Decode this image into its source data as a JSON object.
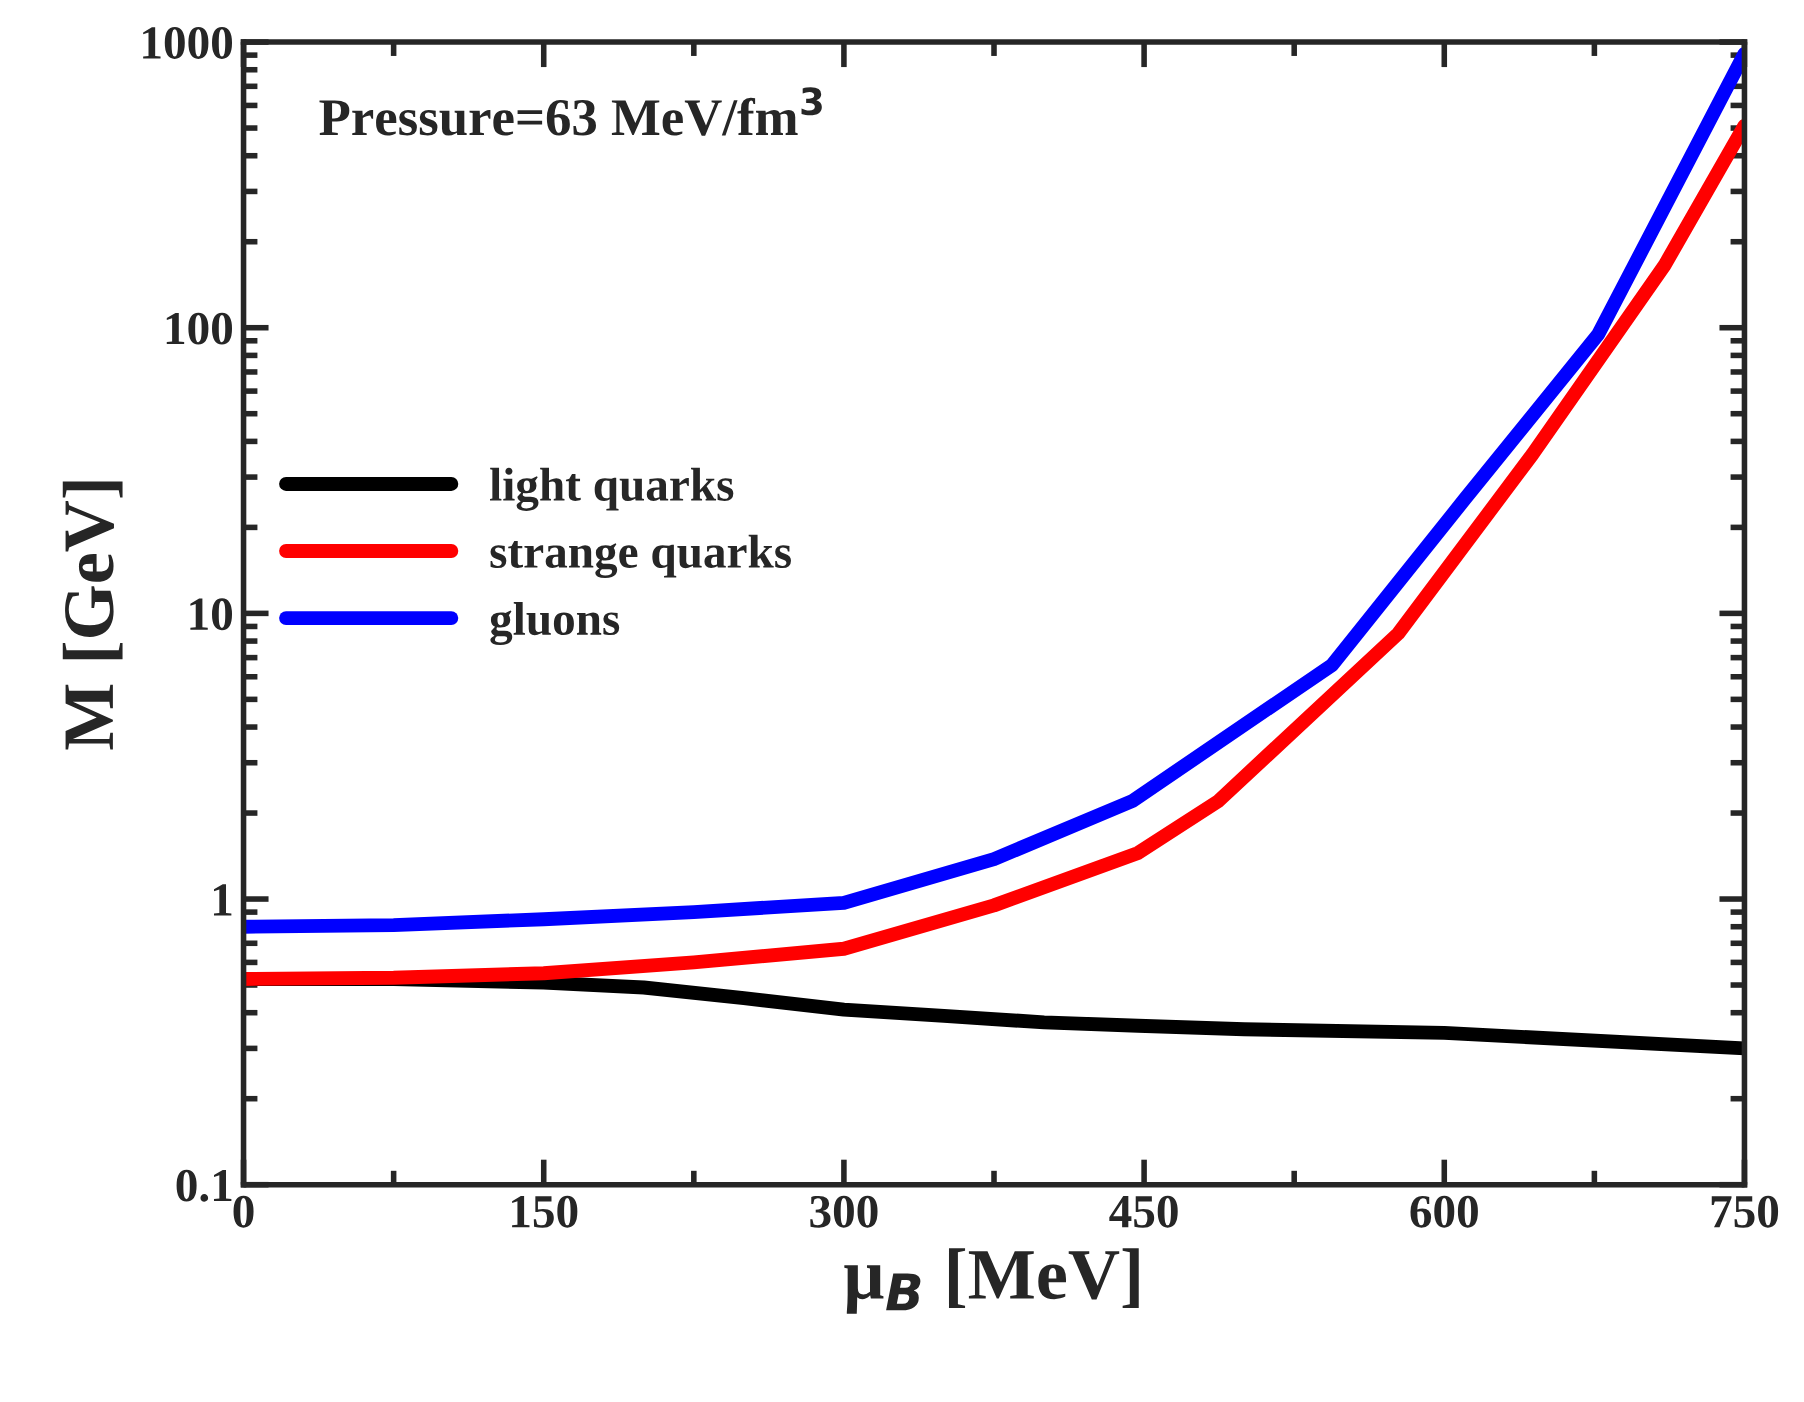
{
  "chart_data": {
    "type": "line",
    "xlabel": "μ$_{B}$ [MeV]",
    "ylabel": "M [GeV]",
    "annotations": [
      "Pressure=63 MeV/fm$^{3}$"
    ],
    "series": [
      {
        "name": "light quarks",
        "color": "#000000",
        "x": [
          0,
          75,
          150,
          200,
          250,
          300,
          350,
          400,
          447,
          500,
          600,
          750
        ],
        "values": [
          0.525,
          0.525,
          0.51,
          0.49,
          0.45,
          0.41,
          0.39,
          0.37,
          0.36,
          0.35,
          0.34,
          0.3
        ]
      },
      {
        "name": "strange quarks",
        "color": "#ff0000",
        "x": [
          0,
          75,
          150,
          225,
          300,
          375,
          447,
          487,
          577,
          644,
          710,
          750
        ],
        "values": [
          0.525,
          0.53,
          0.55,
          0.6,
          0.67,
          0.95,
          1.45,
          2.2,
          8.5,
          36,
          165,
          510
        ]
      },
      {
        "name": "gluons",
        "color": "#0000ff",
        "x": [
          0,
          75,
          150,
          225,
          300,
          375,
          444,
          544,
          610,
          677,
          750
        ],
        "values": [
          0.8,
          0.81,
          0.85,
          0.9,
          0.97,
          1.38,
          2.2,
          6.6,
          25,
          95,
          910
        ]
      }
    ],
    "xlim": [
      0,
      750
    ],
    "xticks": [
      0,
      150,
      300,
      450,
      600,
      750
    ],
    "ylim": [
      0.1,
      1000
    ],
    "yticks": [
      0.1,
      1,
      10,
      100,
      1000
    ],
    "log": "y",
    "legend": "center left",
    "grid": false,
    "line_style": "solid",
    "marker": "none"
  }
}
